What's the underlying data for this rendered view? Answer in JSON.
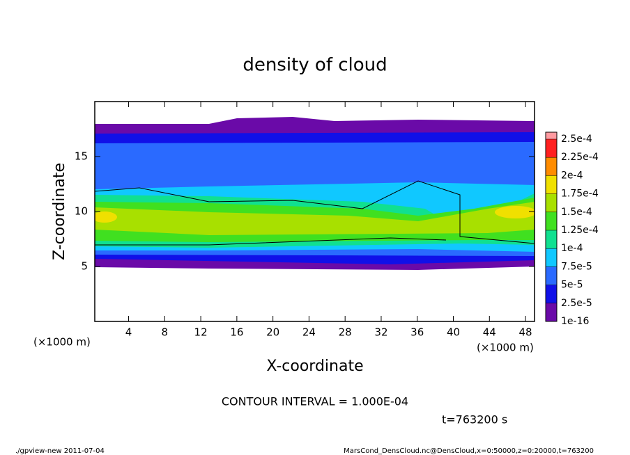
{
  "chart_data": {
    "type": "contour",
    "title": "density of cloud",
    "x_label": "X-coordinate",
    "y_label": "Z-coordinate",
    "x_unit": "(×1000 m)",
    "xlim": [
      0.25,
      49.0
    ],
    "xticks": [
      4,
      8,
      12,
      16,
      20,
      24,
      28,
      32,
      36,
      40,
      44,
      48
    ],
    "ylim": [
      0,
      20
    ],
    "yticks": [
      5,
      10,
      15
    ],
    "clim": [
      1e-16,
      0.00025
    ],
    "cticks": [
      {
        "value": 1e-16,
        "label": "1e-16"
      },
      {
        "value": 2.5e-05,
        "label": "2.5e-5"
      },
      {
        "value": 5e-05,
        "label": "5e-5"
      },
      {
        "value": 7.5e-05,
        "label": "7.5e-5"
      },
      {
        "value": 0.0001,
        "label": "1e-4"
      },
      {
        "value": 0.000125,
        "label": "1.25e-4"
      },
      {
        "value": 0.00015,
        "label": "1.5e-4"
      },
      {
        "value": 0.000175,
        "label": "1.75e-4"
      },
      {
        "value": 0.0002,
        "label": "2e-4"
      },
      {
        "value": 0.000225,
        "label": "2.25e-4"
      },
      {
        "value": 0.00025,
        "label": "2.5e-4"
      }
    ],
    "colors": [
      "#6a0aa8",
      "#1010e8",
      "#2a6aff",
      "#10c8ff",
      "#10e090",
      "#40e020",
      "#a8e000",
      "#f0e000",
      "#ff8c00",
      "#ff2020",
      "#ff9aa0"
    ],
    "contour_interval": "CONTOUR INTERVAL = 1.000E-04",
    "time_label": "t=763200 s",
    "footer_left": "./gpview-new  2011-07-04",
    "footer_right": "MarsCond_DensCloud.nc@DensCloud,x=0:50000,z=0:20000,t=763200"
  }
}
